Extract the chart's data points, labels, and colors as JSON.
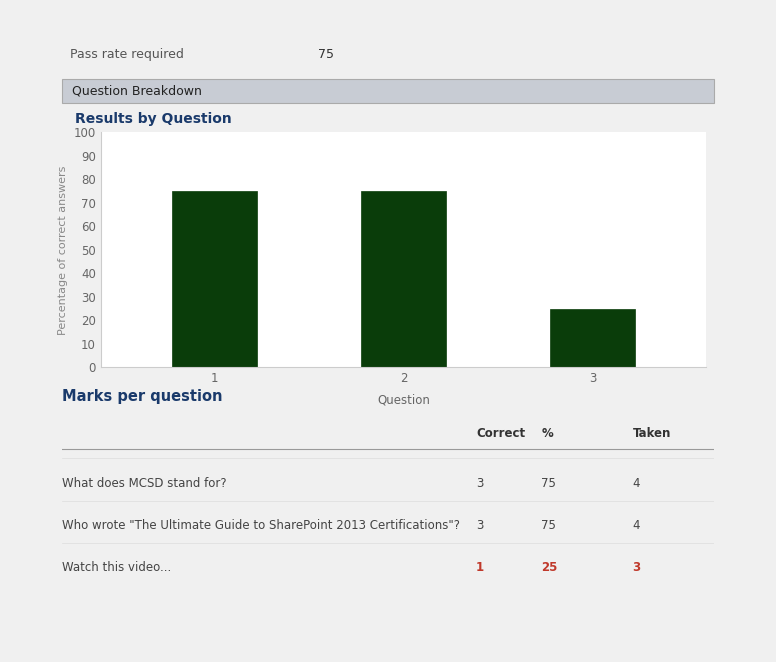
{
  "page_bg": "#f0f0f0",
  "header_color": "#1a7abf",
  "pass_rate_label": "Pass rate required",
  "pass_rate_value": "75",
  "section_title": "Question Breakdown",
  "chart_title": "Results by Question",
  "bar_values": [
    75,
    75,
    25
  ],
  "bar_labels": [
    "1",
    "2",
    "3"
  ],
  "bar_color": "#0a3d0a",
  "ylabel": "Percentage of correct answers",
  "xlabel": "Question",
  "ylim": [
    0,
    100
  ],
  "yticks": [
    0,
    10,
    20,
    30,
    40,
    50,
    60,
    70,
    80,
    90,
    100
  ],
  "marks_title": "Marks per question",
  "table_headers": [
    "",
    "Correct",
    "%",
    "Taken"
  ],
  "table_rows": [
    [
      "What does MCSD stand for?",
      "3",
      "75",
      "4"
    ],
    [
      "Who wrote \"The Ultimate Guide to SharePoint 2013 Certifications\"?",
      "3",
      "75",
      "4"
    ],
    [
      "Watch this video...",
      "1",
      "25",
      "3"
    ]
  ],
  "marks_title_color": "#1a3a6b",
  "section_bg": "#c8ccd4",
  "section_border": "#aaaaaa"
}
